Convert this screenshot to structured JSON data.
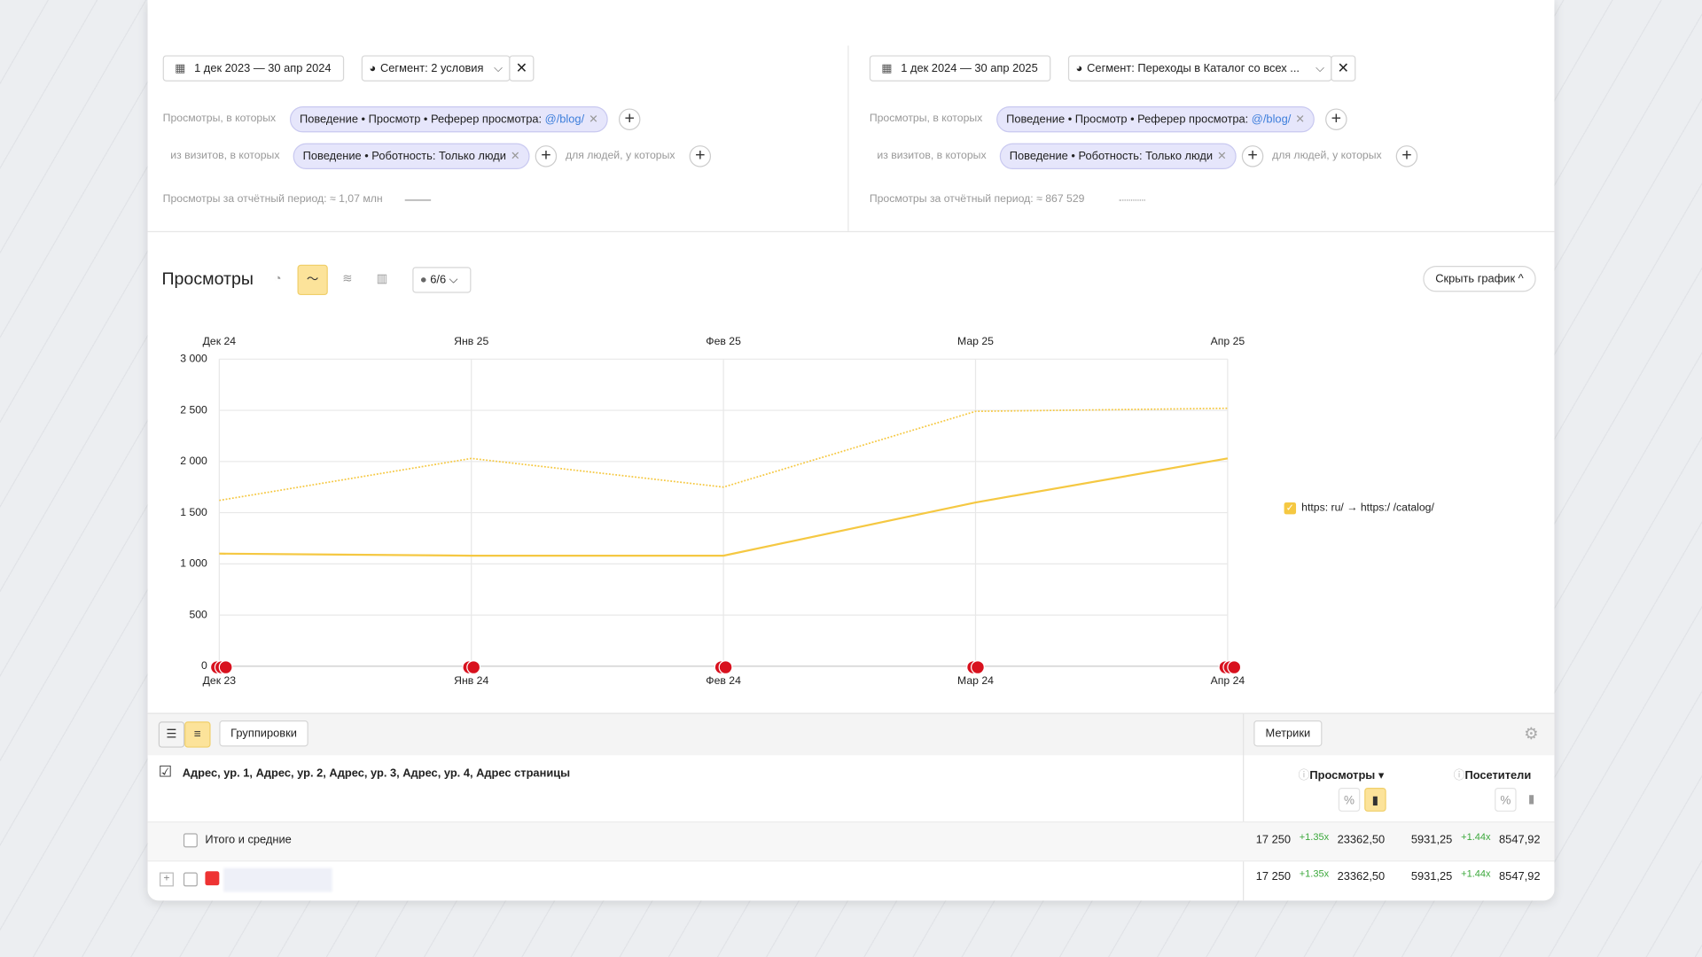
{
  "filters": [
    {
      "period": "1 дек 2023 — 30 апр 2024",
      "segment": "Сегмент: 2 условия",
      "views_label": "Просмотры, в которых",
      "views_condition": "Поведение • Просмотр • Реферер просмотра:",
      "views_value": "@/blog/",
      "visits_label": "из визитов, в которых",
      "visits_condition": "Поведение • Роботность: Только люди",
      "people_label": "для людей, у которых",
      "total": "Просмотры за отчётный период: ≈ 1,07 млн"
    },
    {
      "period": "1 дек 2024 — 30 апр 2025",
      "segment": "Сегмент: Переходы в Каталог со всех ...",
      "views_label": "Просмотры, в которых",
      "views_condition": "Поведение • Просмотр • Реферер просмотра:",
      "views_value": "@/blog/",
      "visits_label": "из визитов, в которых",
      "visits_condition": "Поведение • Роботность: Только люди",
      "people_label": "для людей, у которых",
      "total": "Просмотры за отчётный период: ≈ 867 529"
    }
  ],
  "chart_header": {
    "title": "Просмотры",
    "series_count": "6/6",
    "hide_button": "Скрыть график"
  },
  "chart_data": {
    "type": "line",
    "categories": [
      "Дек 24",
      "Янв 25",
      "Фев 25",
      "Мар 25",
      "Апр 25"
    ],
    "compare_categories": [
      "Дек 23",
      "Янв 24",
      "Фев 24",
      "Мар 24",
      "Апр 24"
    ],
    "series": [
      {
        "name": "https: ru/ → https:/ /catalog/",
        "color": "#f5c842",
        "values": [
          1100,
          1080,
          1080,
          1600,
          2030
        ],
        "style": "solid"
      },
      {
        "color": "#f5c842",
        "values": [
          1620,
          2030,
          1750,
          2490,
          2520
        ],
        "style": "dotted"
      }
    ],
    "ylim": [
      0,
      3000
    ],
    "yticks": [
      0,
      500,
      {
        "value": 1000,
        "label": "1 000"
      },
      {
        "value": 1500,
        "label": "1 500"
      },
      {
        "value": 2000,
        "label": "2 000"
      },
      {
        "value": 2500,
        "label": "2 500"
      },
      {
        "value": 3000,
        "label": "3 000"
      }
    ],
    "grid": true,
    "legend": "right"
  },
  "table": {
    "toolbar": {
      "groupings": "Группировки",
      "metrics": "Метрики"
    },
    "dimension_header": "Адрес, ур. 1, Адрес, ур. 2, Адрес, ур. 3, Адрес, ур. 4, Адрес страницы",
    "columns": [
      "Просмотры",
      "Посетители"
    ],
    "rows": [
      {
        "name": "Итого и средние",
        "cells": [
          "17 250",
          "+1.35x",
          "23362,50",
          "5931,25",
          "+1.44x",
          "8547,92"
        ]
      },
      {
        "cells": [
          "17 250",
          "+1.35x",
          "23362,50",
          "5931,25",
          "+1.44x",
          "8547,92"
        ]
      }
    ]
  }
}
